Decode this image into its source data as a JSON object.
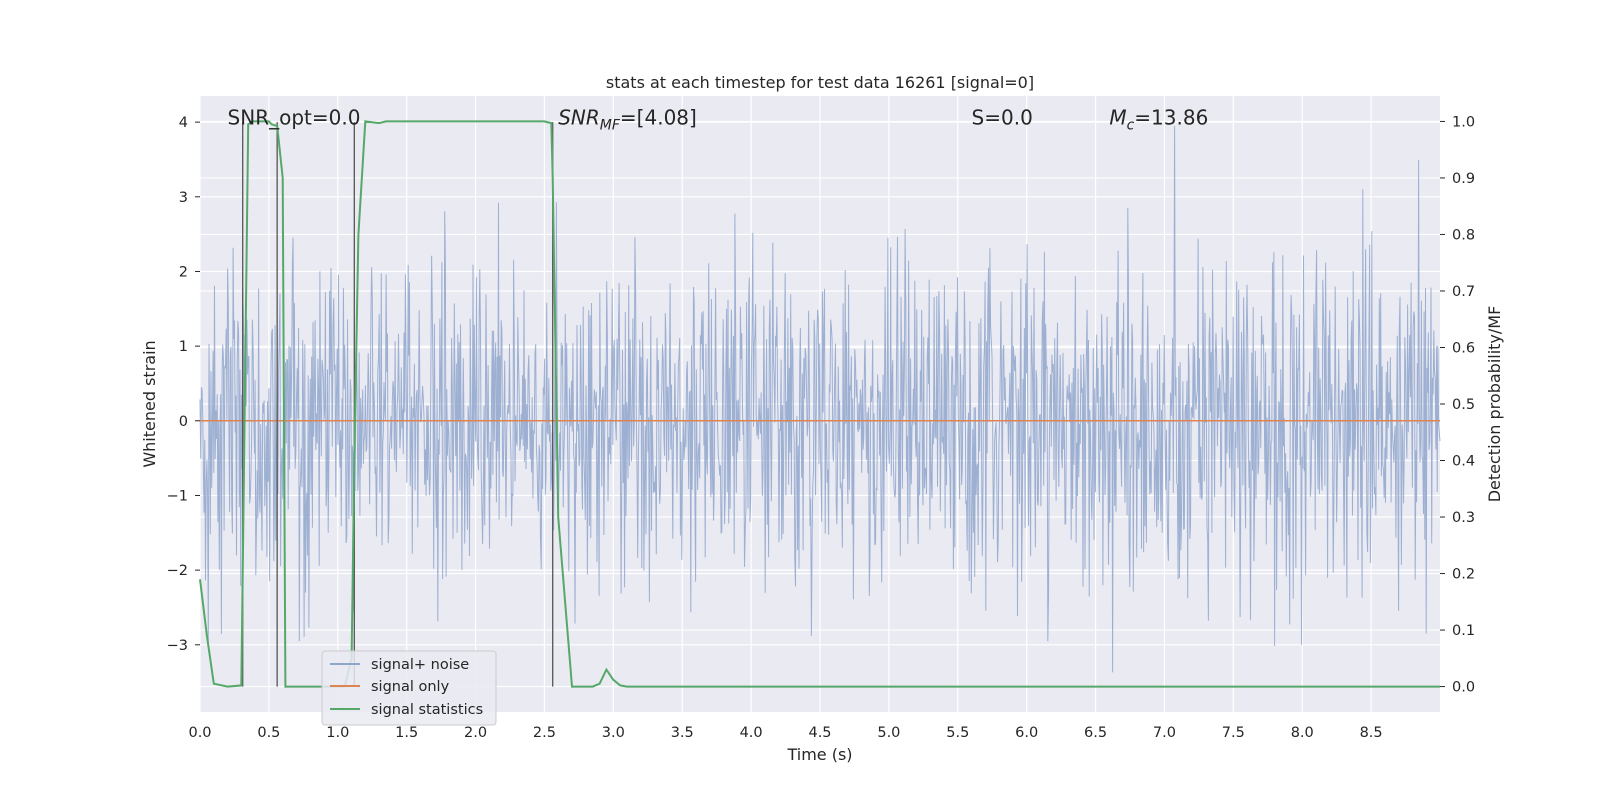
{
  "chart_data": {
    "type": "line",
    "title": "stats at each timestep for test data 16261 [signal=0]",
    "xlabel": "Time (s)",
    "ylabel_left": "Whitened strain",
    "ylabel_right": "Detection probability/MF",
    "xlim": [
      0.0,
      9.0
    ],
    "ylim_left": [
      -3.9,
      4.35
    ],
    "ylim_right": [
      -0.045,
      1.045
    ],
    "x_ticks": [
      0.0,
      0.5,
      1.0,
      1.5,
      2.0,
      2.5,
      3.0,
      3.5,
      4.0,
      4.5,
      5.0,
      5.5,
      6.0,
      6.5,
      7.0,
      7.5,
      8.0,
      8.5
    ],
    "x_tick_labels": [
      "0.0",
      "0.5",
      "1.0",
      "1.5",
      "2.0",
      "2.5",
      "3.0",
      "3.5",
      "4.0",
      "4.5",
      "5.0",
      "5.5",
      "6.0",
      "6.5",
      "7.0",
      "7.5",
      "8.0",
      "8.5"
    ],
    "y_ticks_left": [
      -3,
      -2,
      -1,
      0,
      1,
      2,
      3,
      4
    ],
    "y_tick_labels_left": [
      "−3",
      "−2",
      "−1",
      "0",
      "1",
      "2",
      "3",
      "4"
    ],
    "y_ticks_right": [
      0.0,
      0.1,
      0.2,
      0.3,
      0.4,
      0.5,
      0.6,
      0.7,
      0.8,
      0.9,
      1.0
    ],
    "y_tick_labels_right": [
      "0.0",
      "0.1",
      "0.2",
      "0.3",
      "0.4",
      "0.5",
      "0.6",
      "0.7",
      "0.8",
      "0.9",
      "1.0"
    ],
    "grid": true,
    "legend_position": "lower-left",
    "annotations": [
      {
        "text": "SNR_opt=0.0",
        "x": 0.2,
        "y": 4.05
      },
      {
        "text": "SNR_MF=[4.08]",
        "x": 2.6,
        "y": 4.05
      },
      {
        "text": "S=0.0",
        "x": 5.6,
        "y": 4.05
      },
      {
        "text": "M_c=13.86",
        "x": 6.6,
        "y": 4.05
      }
    ],
    "vertical_lines_x": [
      0.31,
      0.56,
      1.12,
      2.56
    ],
    "series": [
      {
        "name": "signal+ noise",
        "axis": "left",
        "color": "#8fa6cc",
        "description_of_values": "dense noise samples, roughly between -3.5 and 4.0"
      },
      {
        "name": "signal only",
        "axis": "left",
        "color": "#dd8452",
        "x": [
          0.0,
          9.0
        ],
        "y": [
          0.0,
          0.0
        ]
      },
      {
        "name": "signal statistics",
        "axis": "right",
        "color": "#55a868",
        "x": [
          0.0,
          0.05,
          0.1,
          0.2,
          0.3,
          0.31,
          0.35,
          0.38,
          0.45,
          0.5,
          0.52,
          0.56,
          0.6,
          0.62,
          0.7,
          0.8,
          0.9,
          1.0,
          1.05,
          1.1,
          1.12,
          1.15,
          1.2,
          1.3,
          1.35,
          1.4,
          1.5,
          2.0,
          2.5,
          2.55,
          2.56,
          2.6,
          2.7,
          2.8,
          2.85,
          2.9,
          2.95,
          3.0,
          3.05,
          3.1,
          3.5,
          9.0
        ],
        "y": [
          0.19,
          0.09,
          0.005,
          0.0,
          0.002,
          0.2,
          0.995,
          1.0,
          1.0,
          1.0,
          0.995,
          0.992,
          0.9,
          0.0,
          0.0,
          0.0,
          0.0,
          0.0,
          0.0,
          0.05,
          0.4,
          0.8,
          1.0,
          0.997,
          1.0,
          1.0,
          1.0,
          1.0,
          1.0,
          0.997,
          0.9,
          0.3,
          0.0,
          0.0,
          0.0,
          0.005,
          0.03,
          0.012,
          0.002,
          0.0,
          0.0,
          0.0
        ]
      }
    ]
  },
  "styles": {
    "plot_bg": "#eaeaf2",
    "grid_color": "#ffffff",
    "text_color": "#262626",
    "vline_color": "#555555"
  }
}
